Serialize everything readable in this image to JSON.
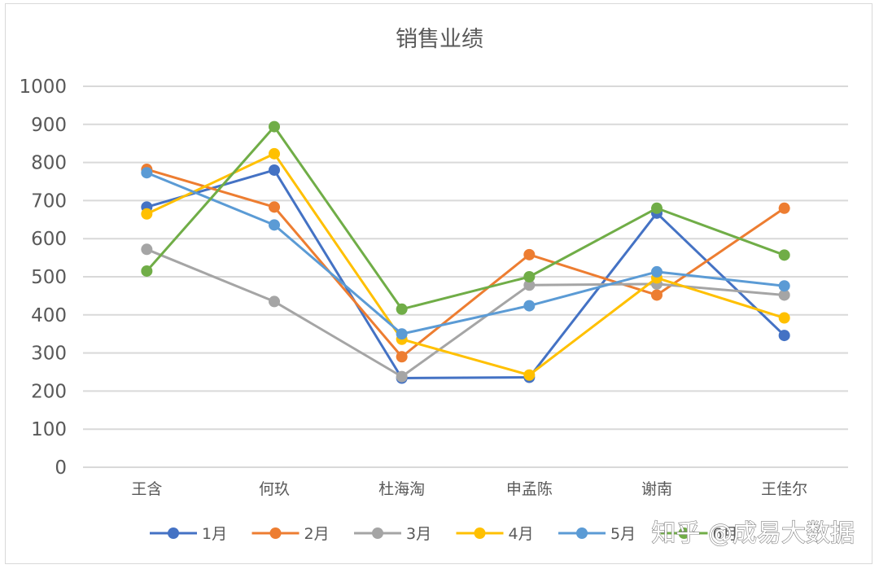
{
  "chart_data": {
    "type": "line",
    "title": "销售业绩",
    "xlabel": "",
    "ylabel": "",
    "categories": [
      "王含",
      "何玖",
      "杜海淘",
      "申孟陈",
      "谢南",
      "王佳尔"
    ],
    "ylim": [
      0,
      1000
    ],
    "yticks": [
      0,
      100,
      200,
      300,
      400,
      500,
      600,
      700,
      800,
      900,
      1000
    ],
    "grid": true,
    "legend_position": "bottom",
    "series": [
      {
        "name": "1月",
        "color": "#4472C4",
        "values": [
          683,
          780,
          234,
          236,
          667,
          346
        ]
      },
      {
        "name": "2月",
        "color": "#ED7D31",
        "values": [
          782,
          683,
          290,
          558,
          452,
          680
        ]
      },
      {
        "name": "3月",
        "color": "#A5A5A5",
        "values": [
          572,
          435,
          238,
          478,
          481,
          452
        ]
      },
      {
        "name": "4月",
        "color": "#FFC000",
        "values": [
          665,
          823,
          336,
          242,
          497,
          392
        ]
      },
      {
        "name": "5月",
        "color": "#5B9BD5",
        "values": [
          773,
          636,
          350,
          424,
          513,
          476
        ]
      },
      {
        "name": "6月",
        "color": "#70AD47",
        "values": [
          515,
          894,
          415,
          500,
          680,
          557
        ]
      }
    ]
  },
  "watermark": {
    "text": "知乎 @成易大数据"
  }
}
